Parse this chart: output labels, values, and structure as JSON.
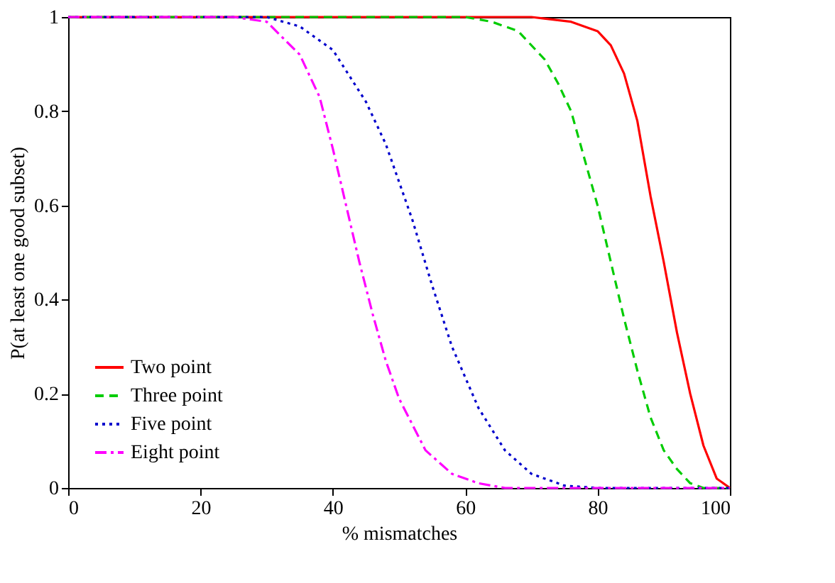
{
  "chart_data": {
    "type": "line",
    "xlabel": "% mismatches",
    "ylabel": "P(at least one good subset)",
    "xlim": [
      0,
      100
    ],
    "ylim": [
      0,
      1
    ],
    "xticks": [
      0,
      20,
      40,
      60,
      80,
      100
    ],
    "yticks": [
      0,
      0.2,
      0.4,
      0.6,
      0.8,
      1
    ],
    "grid": false,
    "legend": "bottom left",
    "marker": "none",
    "series": [
      {
        "name": "Two point",
        "color": "#ff0000",
        "line_style": "solid",
        "x": [
          0,
          20,
          40,
          60,
          70,
          76,
          80,
          82,
          84,
          86,
          88,
          90,
          92,
          94,
          96,
          98,
          100
        ],
        "values": [
          1,
          1,
          1,
          1,
          1,
          0.99,
          0.97,
          0.94,
          0.88,
          0.78,
          0.62,
          0.48,
          0.33,
          0.2,
          0.09,
          0.02,
          0
        ]
      },
      {
        "name": "Three point",
        "color": "#00cc00",
        "line_style": "dashed",
        "x": [
          0,
          20,
          40,
          60,
          64,
          68,
          72,
          74,
          76,
          78,
          80,
          82,
          84,
          86,
          88,
          90,
          92,
          94,
          96,
          100
        ],
        "values": [
          1,
          1,
          1,
          1,
          0.99,
          0.97,
          0.91,
          0.86,
          0.8,
          0.7,
          0.6,
          0.48,
          0.36,
          0.25,
          0.15,
          0.08,
          0.04,
          0.01,
          0,
          0
        ]
      },
      {
        "name": "Five point",
        "color": "#0000cc",
        "line_style": "dotted",
        "x": [
          0,
          20,
          30,
          35,
          40,
          45,
          48,
          50,
          52,
          55,
          58,
          62,
          66,
          70,
          75,
          80,
          100
        ],
        "values": [
          1,
          1,
          1,
          0.98,
          0.93,
          0.82,
          0.73,
          0.65,
          0.57,
          0.43,
          0.3,
          0.17,
          0.08,
          0.03,
          0.005,
          0,
          0
        ]
      },
      {
        "name": "Eight point",
        "color": "#ff00ff",
        "line_style": "dashdot",
        "x": [
          0,
          20,
          25,
          30,
          35,
          38,
          40,
          42,
          44,
          46,
          48,
          50,
          54,
          58,
          62,
          66,
          100
        ],
        "values": [
          1,
          1,
          1,
          0.99,
          0.92,
          0.83,
          0.72,
          0.6,
          0.48,
          0.37,
          0.27,
          0.19,
          0.08,
          0.03,
          0.01,
          0,
          0
        ]
      }
    ]
  }
}
